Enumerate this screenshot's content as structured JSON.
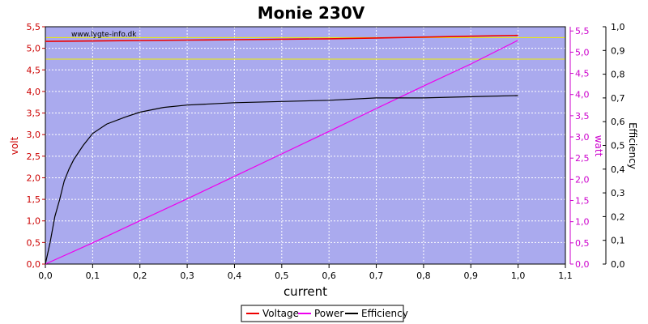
{
  "chart_data": {
    "type": "line",
    "title": "Monie 230V",
    "watermark": "www.lygte-info.dk",
    "xlabel": "current",
    "xlim": [
      0,
      1.1
    ],
    "x_ticks": [
      "0,0",
      "0,1",
      "0,2",
      "0,3",
      "0,4",
      "0,5",
      "0,6",
      "0,7",
      "0,8",
      "0,9",
      "1,0",
      "1,1"
    ],
    "y_left": {
      "label": "volt",
      "lim": [
        0,
        5.5
      ],
      "ticks": [
        "0,0",
        "0,5",
        "1,0",
        "1,5",
        "2,0",
        "2,5",
        "3,0",
        "3,5",
        "4,0",
        "4,5",
        "5,0",
        "5,5"
      ],
      "color": "#cc0000"
    },
    "y_right_power": {
      "label": "watt",
      "lim": [
        0,
        5.6
      ],
      "ticks": [
        "0,0",
        "0,5",
        "1,0",
        "1,5",
        "2,0",
        "2,5",
        "3,0",
        "3,5",
        "4,0",
        "4,5",
        "5,0",
        "5,5"
      ],
      "color": "#cc00cc"
    },
    "y_right_eff": {
      "label": "Efficiency",
      "lim": [
        0,
        1.0
      ],
      "ticks": [
        "0,0",
        "0,1",
        "0,2",
        "0,3",
        "0,4",
        "0,5",
        "0,6",
        "0,7",
        "0,8",
        "0,9",
        "1,0"
      ],
      "color": "#000000"
    },
    "reference_lines_volt": [
      5.25,
      4.75
    ],
    "grid": true,
    "legend_position": "bottom-center",
    "series": [
      {
        "name": "Voltage",
        "color": "#ee0000",
        "axis": "left",
        "x": [
          0.0,
          0.1,
          0.2,
          0.3,
          0.4,
          0.5,
          0.6,
          0.7,
          0.8,
          0.9,
          1.0
        ],
        "values": [
          5.16,
          5.17,
          5.18,
          5.19,
          5.2,
          5.21,
          5.22,
          5.24,
          5.26,
          5.28,
          5.3
        ]
      },
      {
        "name": "Power",
        "color": "#ee00ee",
        "axis": "right_power",
        "x": [
          0.0,
          0.1,
          0.2,
          0.3,
          0.4,
          0.5,
          0.6,
          0.7,
          0.8,
          0.9,
          1.0
        ],
        "values": [
          0.0,
          0.5,
          1.02,
          1.54,
          2.07,
          2.6,
          3.13,
          3.67,
          4.2,
          4.72,
          5.28
        ]
      },
      {
        "name": "Efficiency",
        "color": "#000000",
        "axis": "right_eff",
        "x": [
          0.0,
          0.01,
          0.02,
          0.03,
          0.04,
          0.05,
          0.06,
          0.08,
          0.1,
          0.13,
          0.17,
          0.2,
          0.25,
          0.3,
          0.4,
          0.5,
          0.6,
          0.7,
          0.8,
          0.9,
          1.0
        ],
        "values": [
          0.0,
          0.09,
          0.2,
          0.27,
          0.35,
          0.4,
          0.44,
          0.5,
          0.55,
          0.59,
          0.62,
          0.64,
          0.66,
          0.67,
          0.68,
          0.685,
          0.69,
          0.7,
          0.7,
          0.705,
          0.71
        ]
      }
    ]
  }
}
